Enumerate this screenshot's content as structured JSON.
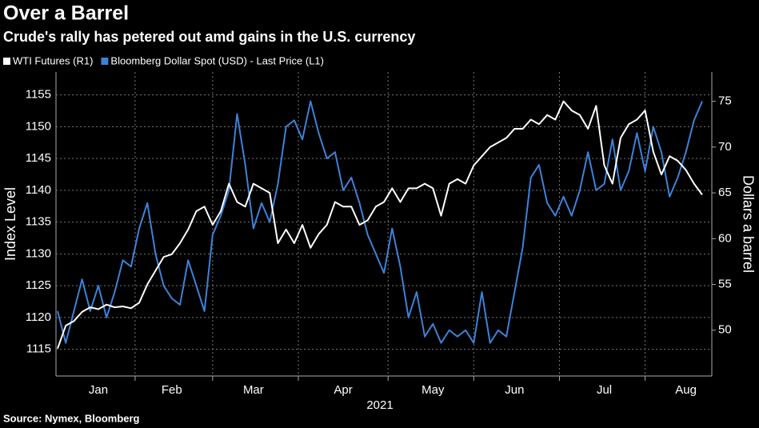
{
  "chart_data": {
    "type": "line",
    "title": "Over a Barrel",
    "subtitle": "Crude's rally has petered out amd gains in the U.S. currency",
    "source": "Source: Nymex, Bloomberg",
    "xlabel": "2021",
    "ylabel": "Index Level",
    "y2label": "Dollars a barrel",
    "categories": [
      null,
      null,
      null,
      null,
      null,
      "Jan",
      null,
      null,
      null,
      null,
      null,
      null,
      null,
      null,
      "Feb",
      null,
      null,
      null,
      null,
      null,
      null,
      null,
      null,
      null,
      "Mar",
      null,
      null,
      null,
      null,
      null,
      null,
      null,
      null,
      null,
      null,
      "Apr",
      null,
      null,
      null,
      null,
      null,
      null,
      null,
      null,
      null,
      null,
      "May",
      null,
      null,
      null,
      null,
      null,
      null,
      null,
      null,
      null,
      "Jun",
      null,
      null,
      null,
      null,
      null,
      null,
      null,
      null,
      null,
      null,
      "Jul",
      null,
      null,
      null,
      null,
      null,
      null,
      null,
      null,
      null,
      "Aug",
      null,
      null
    ],
    "series": [
      {
        "name": "WTI Futures (R1)",
        "color": "#ffffff",
        "axis": "y2",
        "values": [
          48,
          50.5,
          51,
          52,
          52.5,
          52.3,
          52.8,
          52.5,
          52.6,
          52.4,
          53,
          55,
          56.5,
          58,
          58.3,
          59.5,
          61,
          63,
          63.5,
          61.5,
          63,
          66,
          64,
          63.5,
          66,
          65.5,
          65,
          59.5,
          61,
          59.5,
          61.5,
          59,
          60.5,
          61.5,
          64,
          63.5,
          63.5,
          61.5,
          62,
          63.5,
          64,
          65.5,
          64,
          65.5,
          65.5,
          66,
          65.5,
          62.5,
          66,
          66.5,
          66,
          68,
          69,
          70,
          70.5,
          71,
          72,
          72,
          73,
          72.5,
          73.5,
          73,
          75,
          74,
          73.5,
          72,
          74.5,
          68,
          66,
          71,
          72.5,
          73,
          74,
          69.5,
          67,
          69,
          68.5,
          67.5,
          66,
          64.8
        ]
      },
      {
        "name": "Bloomberg Dollar Spot (USD) - Last Price (L1)",
        "color": "#3d82d8",
        "values": [
          1121,
          1116,
          1121,
          1126,
          1121,
          1125,
          1120,
          1124,
          1129,
          1128,
          1134,
          1138,
          1130,
          1125,
          1123,
          1122,
          1129,
          1125,
          1121,
          1133,
          1136,
          1140,
          1152,
          1144,
          1134,
          1138,
          1135,
          1141,
          1150,
          1151,
          1148,
          1154,
          1149,
          1145,
          1146,
          1140,
          1142,
          1138,
          1133,
          1130,
          1127,
          1134,
          1128,
          1120,
          1124,
          1117,
          1119,
          1116,
          1118,
          1117,
          1118,
          1116,
          1124,
          1116,
          1118,
          1117,
          1124,
          1131,
          1142,
          1144,
          1138,
          1136,
          1139,
          1136,
          1140,
          1146,
          1140,
          1141,
          1148,
          1140,
          1143,
          1149,
          1143,
          1150,
          1146,
          1139,
          1142,
          1146,
          1151,
          1154
        ]
      }
    ],
    "ylim": [
      1110.8,
      1158.6
    ],
    "yticks": [
      1115,
      1120,
      1125,
      1130,
      1135,
      1140,
      1145,
      1150,
      1155
    ],
    "y2lim": [
      45,
      78.2
    ],
    "y2ticks": [
      50,
      55,
      60,
      65,
      70,
      75
    ],
    "grid": true
  }
}
